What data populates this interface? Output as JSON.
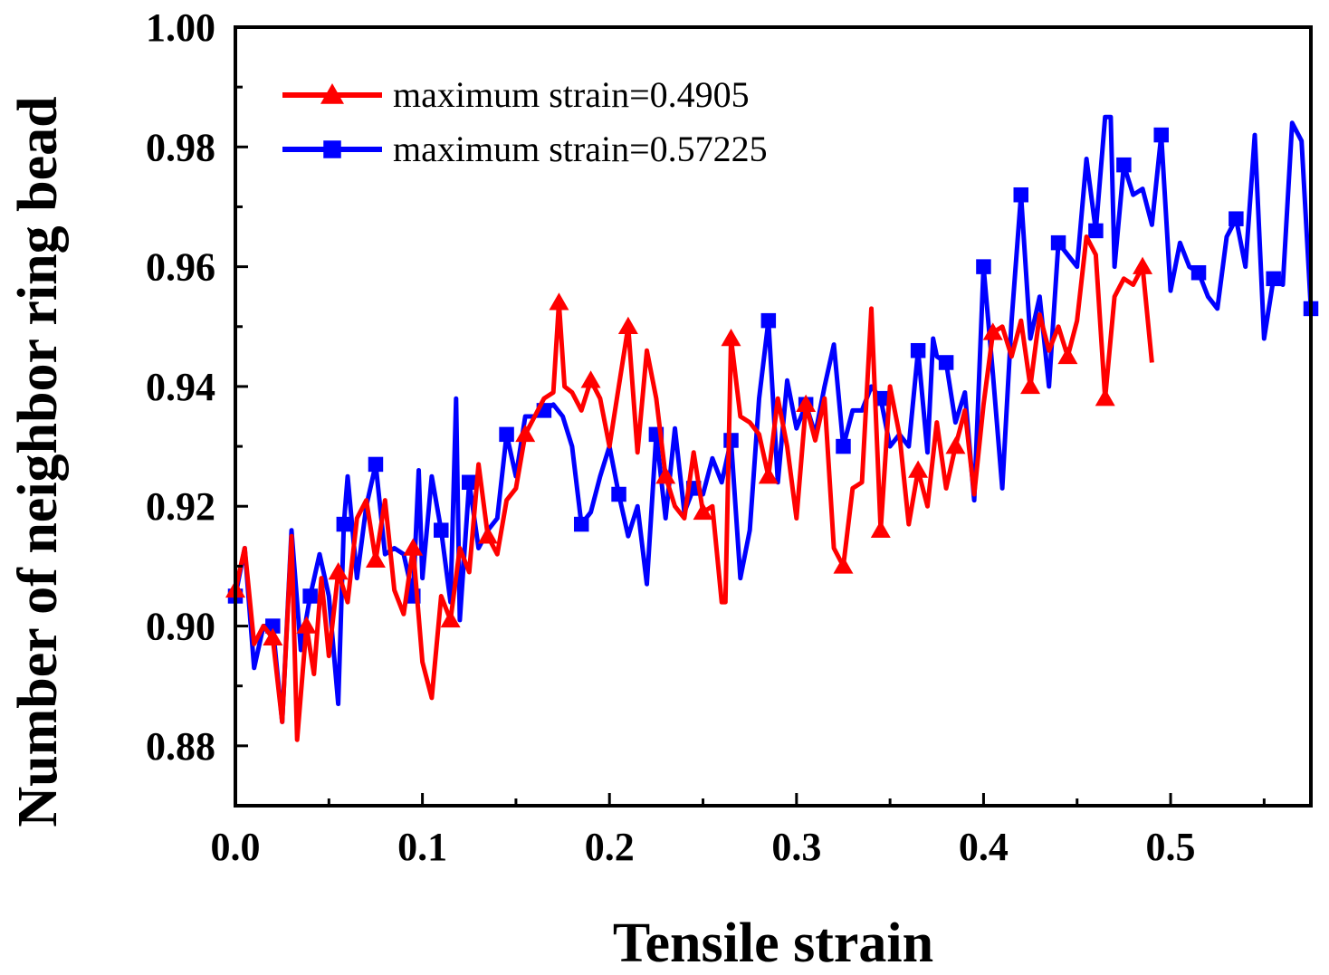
{
  "chart_data": {
    "type": "line",
    "xlabel": "Tensile strain",
    "ylabel": "Number of neighbor ring bead",
    "xlim": [
      0.0,
      0.575
    ],
    "ylim": [
      0.87,
      1.0
    ],
    "xticks": [
      0.0,
      0.1,
      0.2,
      0.3,
      0.4,
      0.5
    ],
    "xtick_labels": [
      "0.0",
      "0.1",
      "0.2",
      "0.3",
      "0.4",
      "0.5"
    ],
    "yticks": [
      0.88,
      0.9,
      0.92,
      0.94,
      0.96,
      0.98,
      1.0
    ],
    "ytick_labels": [
      "0.88",
      "0.90",
      "0.92",
      "0.94",
      "0.96",
      "0.98",
      "1.00"
    ],
    "legend_position": "top-left",
    "series": [
      {
        "name": "maximum strain=0.4905",
        "color": "#ff0000",
        "marker": "triangle",
        "x": [
          0.0,
          0.005,
          0.01,
          0.015,
          0.02,
          0.025,
          0.03,
          0.033,
          0.038,
          0.042,
          0.046,
          0.05,
          0.055,
          0.06,
          0.065,
          0.07,
          0.075,
          0.08,
          0.085,
          0.09,
          0.095,
          0.1,
          0.105,
          0.11,
          0.115,
          0.12,
          0.125,
          0.13,
          0.135,
          0.14,
          0.145,
          0.15,
          0.155,
          0.16,
          0.165,
          0.17,
          0.173,
          0.176,
          0.18,
          0.185,
          0.19,
          0.195,
          0.2,
          0.205,
          0.21,
          0.215,
          0.22,
          0.225,
          0.23,
          0.235,
          0.24,
          0.245,
          0.25,
          0.255,
          0.26,
          0.262,
          0.265,
          0.27,
          0.275,
          0.28,
          0.285,
          0.29,
          0.295,
          0.3,
          0.305,
          0.31,
          0.315,
          0.32,
          0.325,
          0.33,
          0.335,
          0.34,
          0.345,
          0.35,
          0.355,
          0.36,
          0.365,
          0.37,
          0.375,
          0.38,
          0.385,
          0.39,
          0.395,
          0.4,
          0.405,
          0.41,
          0.415,
          0.42,
          0.425,
          0.43,
          0.435,
          0.44,
          0.445,
          0.45,
          0.455,
          0.46,
          0.465,
          0.47,
          0.475,
          0.48,
          0.485,
          0.49
        ],
        "values": [
          0.906,
          0.913,
          0.897,
          0.9,
          0.898,
          0.884,
          0.915,
          0.881,
          0.9,
          0.892,
          0.908,
          0.895,
          0.909,
          0.904,
          0.918,
          0.921,
          0.911,
          0.921,
          0.906,
          0.902,
          0.913,
          0.894,
          0.888,
          0.905,
          0.901,
          0.913,
          0.909,
          0.927,
          0.915,
          0.912,
          0.921,
          0.923,
          0.932,
          0.935,
          0.938,
          0.939,
          0.954,
          0.94,
          0.939,
          0.936,
          0.941,
          0.938,
          0.93,
          0.94,
          0.95,
          0.929,
          0.946,
          0.938,
          0.925,
          0.92,
          0.918,
          0.929,
          0.919,
          0.92,
          0.904,
          0.904,
          0.948,
          0.935,
          0.934,
          0.932,
          0.925,
          0.938,
          0.93,
          0.918,
          0.937,
          0.931,
          0.938,
          0.913,
          0.91,
          0.923,
          0.924,
          0.953,
          0.916,
          0.94,
          0.932,
          0.917,
          0.926,
          0.92,
          0.934,
          0.923,
          0.93,
          0.936,
          0.922,
          0.937,
          0.949,
          0.95,
          0.945,
          0.951,
          0.94,
          0.952,
          0.946,
          0.95,
          0.945,
          0.951,
          0.965,
          0.962,
          0.938,
          0.955,
          0.958,
          0.957,
          0.96,
          0.944
        ]
      },
      {
        "name": "maximum strain=0.57225",
        "color": "#0000ff",
        "marker": "square",
        "x": [
          0.0,
          0.005,
          0.01,
          0.015,
          0.02,
          0.025,
          0.03,
          0.035,
          0.04,
          0.045,
          0.05,
          0.055,
          0.058,
          0.06,
          0.065,
          0.07,
          0.075,
          0.08,
          0.085,
          0.09,
          0.095,
          0.098,
          0.1,
          0.105,
          0.11,
          0.115,
          0.118,
          0.12,
          0.125,
          0.13,
          0.135,
          0.14,
          0.145,
          0.15,
          0.155,
          0.16,
          0.165,
          0.17,
          0.175,
          0.18,
          0.185,
          0.19,
          0.195,
          0.2,
          0.205,
          0.21,
          0.215,
          0.22,
          0.225,
          0.23,
          0.235,
          0.24,
          0.245,
          0.25,
          0.255,
          0.26,
          0.265,
          0.27,
          0.275,
          0.28,
          0.285,
          0.29,
          0.295,
          0.3,
          0.305,
          0.31,
          0.315,
          0.32,
          0.325,
          0.33,
          0.335,
          0.34,
          0.345,
          0.35,
          0.355,
          0.36,
          0.365,
          0.37,
          0.373,
          0.375,
          0.38,
          0.385,
          0.39,
          0.395,
          0.4,
          0.405,
          0.41,
          0.415,
          0.42,
          0.425,
          0.43,
          0.435,
          0.44,
          0.445,
          0.45,
          0.455,
          0.46,
          0.465,
          0.468,
          0.47,
          0.475,
          0.48,
          0.485,
          0.49,
          0.495,
          0.5,
          0.505,
          0.51,
          0.515,
          0.52,
          0.525,
          0.53,
          0.535,
          0.54,
          0.545,
          0.55,
          0.555,
          0.56,
          0.565,
          0.57,
          0.575
        ],
        "values": [
          0.905,
          0.913,
          0.893,
          0.9,
          0.9,
          0.884,
          0.916,
          0.896,
          0.905,
          0.912,
          0.905,
          0.887,
          0.917,
          0.925,
          0.908,
          0.92,
          0.927,
          0.912,
          0.913,
          0.912,
          0.905,
          0.926,
          0.908,
          0.925,
          0.916,
          0.904,
          0.938,
          0.901,
          0.924,
          0.913,
          0.916,
          0.918,
          0.932,
          0.925,
          0.935,
          0.935,
          0.936,
          0.937,
          0.935,
          0.93,
          0.917,
          0.919,
          0.925,
          0.93,
          0.922,
          0.915,
          0.92,
          0.907,
          0.932,
          0.918,
          0.933,
          0.919,
          0.923,
          0.922,
          0.928,
          0.924,
          0.931,
          0.908,
          0.916,
          0.938,
          0.951,
          0.924,
          0.941,
          0.933,
          0.937,
          0.932,
          0.94,
          0.947,
          0.93,
          0.936,
          0.936,
          0.94,
          0.938,
          0.93,
          0.932,
          0.93,
          0.946,
          0.929,
          0.948,
          0.945,
          0.944,
          0.934,
          0.939,
          0.921,
          0.96,
          0.942,
          0.923,
          0.951,
          0.972,
          0.948,
          0.955,
          0.94,
          0.964,
          0.962,
          0.96,
          0.978,
          0.966,
          0.985,
          0.985,
          0.96,
          0.977,
          0.972,
          0.973,
          0.967,
          0.982,
          0.956,
          0.964,
          0.96,
          0.959,
          0.955,
          0.953,
          0.965,
          0.968,
          0.96,
          0.982,
          0.948,
          0.958,
          0.957,
          0.984,
          0.981,
          0.953
        ]
      }
    ]
  }
}
